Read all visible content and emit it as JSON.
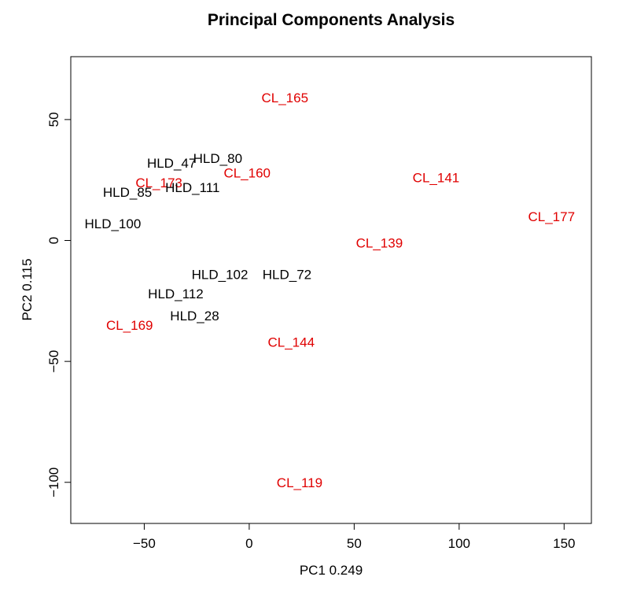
{
  "chart_data": {
    "type": "scatter",
    "title": "Principal Components Analysis",
    "xlabel": "PC1 0.249",
    "ylabel": "PC2 0.115",
    "xlim": [
      -85,
      163
    ],
    "ylim": [
      -117,
      76
    ],
    "xticks": [
      -50,
      0,
      50,
      100,
      150
    ],
    "yticks": [
      -100,
      -50,
      0,
      50
    ],
    "grid": false,
    "points": [
      {
        "label": "CL_165",
        "x": 17,
        "y": 59,
        "color": "#e00000"
      },
      {
        "label": "HLD_80",
        "x": -15,
        "y": 34,
        "color": "#000000"
      },
      {
        "label": "HLD_47",
        "x": -37,
        "y": 32,
        "color": "#000000"
      },
      {
        "label": "CL_160",
        "x": -1,
        "y": 28,
        "color": "#e00000"
      },
      {
        "label": "CL_141",
        "x": 89,
        "y": 26,
        "color": "#e00000"
      },
      {
        "label": "CL_173",
        "x": -43,
        "y": 24,
        "color": "#e00000"
      },
      {
        "label": "HLD_111",
        "x": -27,
        "y": 22,
        "color": "#000000"
      },
      {
        "label": "HLD_85",
        "x": -58,
        "y": 20,
        "color": "#000000"
      },
      {
        "label": "CL_177",
        "x": 144,
        "y": 10,
        "color": "#e00000"
      },
      {
        "label": "HLD_100",
        "x": -65,
        "y": 7,
        "color": "#000000"
      },
      {
        "label": "CL_139",
        "x": 62,
        "y": -1,
        "color": "#e00000"
      },
      {
        "label": "HLD_102",
        "x": -14,
        "y": -14,
        "color": "#000000"
      },
      {
        "label": "HLD_72",
        "x": 18,
        "y": -14,
        "color": "#000000"
      },
      {
        "label": "HLD_112",
        "x": -35,
        "y": -22,
        "color": "#000000"
      },
      {
        "label": "HLD_28",
        "x": -26,
        "y": -31,
        "color": "#000000"
      },
      {
        "label": "CL_169",
        "x": -57,
        "y": -35,
        "color": "#e00000"
      },
      {
        "label": "CL_144",
        "x": 20,
        "y": -42,
        "color": "#e00000"
      },
      {
        "label": "CL_119",
        "x": 24,
        "y": -100,
        "color": "#e00000"
      }
    ]
  }
}
